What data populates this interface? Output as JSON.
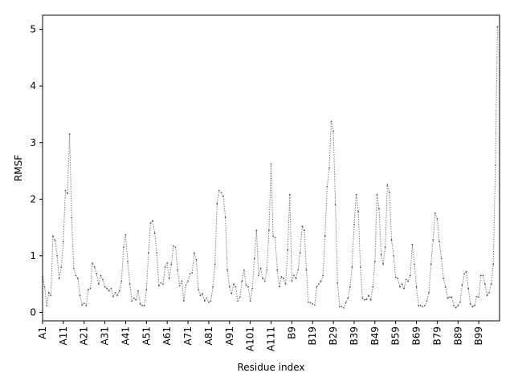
{
  "chart_data": {
    "type": "line",
    "title": "",
    "xlabel": "Residue index",
    "ylabel": "RMSF",
    "ylim": [
      -0.15,
      5.25
    ],
    "yticks": [
      0,
      1,
      2,
      3,
      4,
      5
    ],
    "xlim": [
      0,
      220
    ],
    "xtick_labels": [
      "A1",
      "A11",
      "A21",
      "A31",
      "A41",
      "A51",
      "A61",
      "A71",
      "A81",
      "A91",
      "A101",
      "A111",
      "B9",
      "B19",
      "B29",
      "B39",
      "B49",
      "B59",
      "B69",
      "B79",
      "B89",
      "B99"
    ],
    "xtick_positions": [
      0,
      10,
      20,
      30,
      40,
      50,
      60,
      70,
      80,
      90,
      100,
      110,
      120,
      130,
      140,
      150,
      160,
      170,
      180,
      190,
      200,
      210
    ],
    "line_color": "#808080",
    "line_style": "dotted",
    "marker": "point",
    "series": [
      {
        "values": [
          0.63,
          0.45,
          0.12,
          0.35,
          0.3,
          1.35,
          1.27,
          1.0,
          0.6,
          0.8,
          1.25,
          2.15,
          2.1,
          3.15,
          1.67,
          0.78,
          0.65,
          0.6,
          0.3,
          0.13,
          0.16,
          0.12,
          0.4,
          0.42,
          0.87,
          0.8,
          0.68,
          0.5,
          0.65,
          0.58,
          0.45,
          0.42,
          0.38,
          0.42,
          0.28,
          0.35,
          0.3,
          0.38,
          0.55,
          1.15,
          1.37,
          0.9,
          0.5,
          0.2,
          0.25,
          0.22,
          0.38,
          0.15,
          0.12,
          0.12,
          0.4,
          1.05,
          1.58,
          1.62,
          1.4,
          1.05,
          0.47,
          0.52,
          0.5,
          0.8,
          0.87,
          0.6,
          0.85,
          1.17,
          1.15,
          0.75,
          0.47,
          0.55,
          0.2,
          0.48,
          0.55,
          0.68,
          0.7,
          1.05,
          0.93,
          0.4,
          0.3,
          0.33,
          0.2,
          0.25,
          0.18,
          0.2,
          0.45,
          0.85,
          1.92,
          2.15,
          2.12,
          2.05,
          1.68,
          0.75,
          0.45,
          0.33,
          0.5,
          0.45,
          0.2,
          0.27,
          0.55,
          0.75,
          0.48,
          0.45,
          0.2,
          0.42,
          0.95,
          1.45,
          0.65,
          0.78,
          0.6,
          0.55,
          0.75,
          1.45,
          2.62,
          1.35,
          1.32,
          0.75,
          0.45,
          0.63,
          0.6,
          0.5,
          1.1,
          2.08,
          0.55,
          0.65,
          0.6,
          0.75,
          1.05,
          1.52,
          1.45,
          0.75,
          0.18,
          0.17,
          0.15,
          0.13,
          0.45,
          0.5,
          0.55,
          0.65,
          1.35,
          2.22,
          2.55,
          3.37,
          3.2,
          1.9,
          0.52,
          0.1,
          0.1,
          0.08,
          0.17,
          0.25,
          0.45,
          0.8,
          1.55,
          2.08,
          1.78,
          0.8,
          0.25,
          0.22,
          0.23,
          0.3,
          0.22,
          0.45,
          0.9,
          2.08,
          1.83,
          1.02,
          0.85,
          1.15,
          2.25,
          2.12,
          1.28,
          1.0,
          0.62,
          0.6,
          0.45,
          0.5,
          0.42,
          0.58,
          0.55,
          0.65,
          1.2,
          0.85,
          0.45,
          0.12,
          0.12,
          0.1,
          0.12,
          0.2,
          0.35,
          0.85,
          1.28,
          1.75,
          1.65,
          1.25,
          0.95,
          0.6,
          0.45,
          0.25,
          0.27,
          0.27,
          0.12,
          0.08,
          0.12,
          0.18,
          0.48,
          0.68,
          0.72,
          0.42,
          0.15,
          0.1,
          0.12,
          0.28,
          0.27,
          0.65,
          0.65,
          0.5,
          0.3,
          0.35,
          0.5,
          0.85,
          2.6,
          5.05
        ]
      }
    ]
  }
}
